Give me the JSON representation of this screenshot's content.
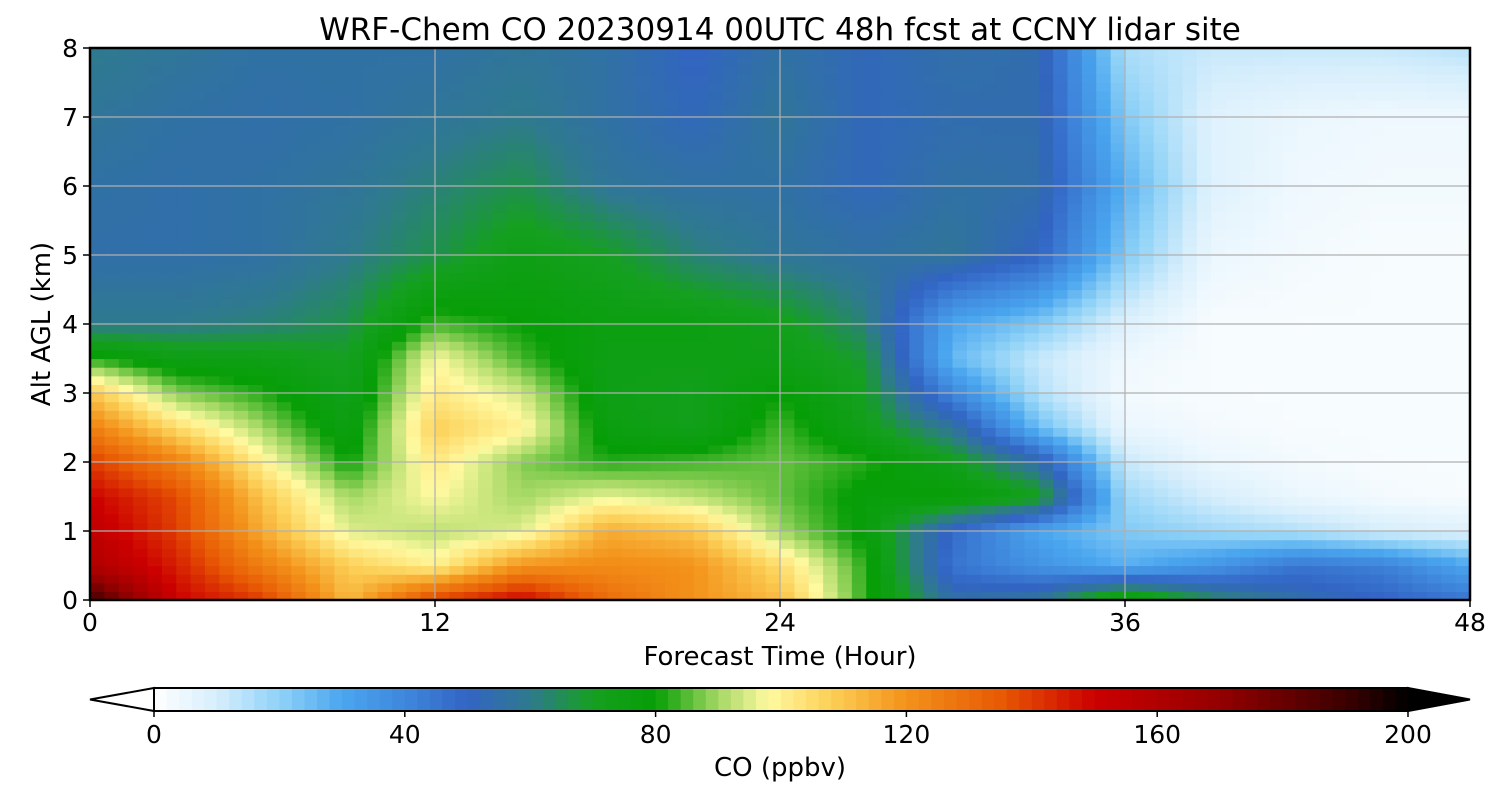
{
  "chart_data": {
    "type": "heatmap",
    "title": "WRF-Chem CO  20230914 00UTC 48h fcst at CCNY lidar site",
    "xlabel": "Forecast Time (Hour)",
    "ylabel": "Alt AGL (km)",
    "xlim": [
      0,
      48
    ],
    "ylim": [
      0,
      8
    ],
    "xticks": [
      "0",
      "12",
      "24",
      "36",
      "48"
    ],
    "yticks": [
      "0",
      "1",
      "2",
      "3",
      "4",
      "5",
      "6",
      "7",
      "8"
    ],
    "grid": true,
    "colorbar": {
      "label": "CO  (ppbv)",
      "min": 0,
      "max": 200,
      "ticks": [
        "0",
        "40",
        "80",
        "120",
        "160",
        "200"
      ],
      "extend": "both",
      "colors": [
        [
          0,
          "#ffffff"
        ],
        [
          10,
          "#d6eefc"
        ],
        [
          20,
          "#8fd2f7"
        ],
        [
          30,
          "#4aa6ef"
        ],
        [
          40,
          "#3f87dc"
        ],
        [
          50,
          "#3264c4"
        ],
        [
          60,
          "#2f7a8e"
        ],
        [
          70,
          "#15a020"
        ],
        [
          80,
          "#069e06"
        ],
        [
          90,
          "#a4d864"
        ],
        [
          98,
          "#fff9a0"
        ],
        [
          108,
          "#fccf56"
        ],
        [
          120,
          "#f3921a"
        ],
        [
          135,
          "#e85a04"
        ],
        [
          150,
          "#cc0000"
        ],
        [
          170,
          "#940000"
        ],
        [
          190,
          "#3c0000"
        ],
        [
          200,
          "#000000"
        ]
      ]
    },
    "x_hours": [
      0,
      3,
      6,
      9,
      12,
      15,
      18,
      21,
      24,
      27,
      30,
      33,
      36,
      39,
      42,
      45,
      48
    ],
    "alt_km": [
      0,
      0.5,
      1,
      1.5,
      2,
      2.5,
      3,
      3.5,
      4,
      5,
      6,
      7,
      8
    ],
    "values": [
      [
        190,
        150,
        140,
        112,
        140,
        150,
        130,
        120,
        112,
        82,
        55,
        58,
        82,
        65,
        55,
        50,
        45
      ],
      [
        160,
        145,
        125,
        108,
        100,
        120,
        122,
        120,
        105,
        82,
        45,
        36,
        28,
        35,
        45,
        42,
        30
      ],
      [
        155,
        140,
        115,
        95,
        92,
        95,
        115,
        110,
        90,
        78,
        48,
        30,
        22,
        18,
        15,
        10,
        8
      ],
      [
        150,
        138,
        110,
        90,
        98,
        90,
        96,
        92,
        86,
        78,
        80,
        72,
        18,
        10,
        5,
        3,
        2
      ],
      [
        140,
        125,
        100,
        80,
        102,
        88,
        82,
        84,
        86,
        82,
        72,
        55,
        12,
        5,
        3,
        2,
        2
      ],
      [
        125,
        105,
        90,
        75,
        108,
        100,
        76,
        72,
        84,
        72,
        58,
        25,
        5,
        3,
        2,
        2,
        2
      ],
      [
        110,
        88,
        82,
        72,
        102,
        94,
        74,
        72,
        80,
        70,
        40,
        15,
        3,
        2,
        2,
        2,
        2
      ],
      [
        82,
        75,
        74,
        70,
        98,
        84,
        74,
        74,
        74,
        68,
        26,
        12,
        4,
        2,
        2,
        2,
        2
      ],
      [
        60,
        60,
        62,
        66,
        84,
        80,
        76,
        76,
        72,
        62,
        30,
        22,
        8,
        2,
        2,
        2,
        2
      ],
      [
        55,
        55,
        56,
        60,
        66,
        74,
        70,
        62,
        58,
        56,
        58,
        50,
        22,
        5,
        3,
        2,
        2
      ],
      [
        56,
        55,
        56,
        58,
        62,
        66,
        58,
        56,
        56,
        52,
        56,
        55,
        28,
        8,
        4,
        3,
        3
      ],
      [
        58,
        56,
        55,
        56,
        58,
        60,
        56,
        52,
        58,
        52,
        54,
        54,
        22,
        8,
        5,
        4,
        4
      ],
      [
        60,
        58,
        56,
        56,
        56,
        58,
        56,
        50,
        56,
        52,
        55,
        54,
        16,
        12,
        12,
        12,
        14
      ]
    ]
  }
}
